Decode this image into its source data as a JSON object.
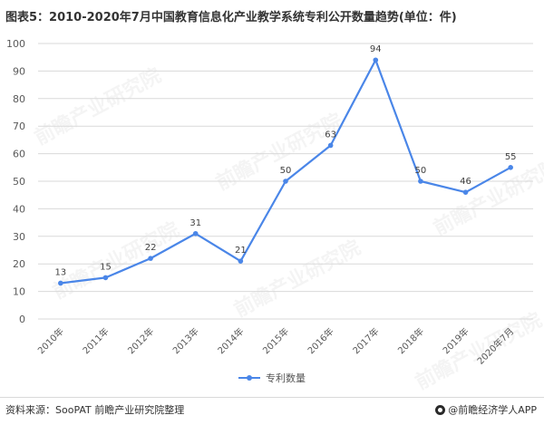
{
  "title": "图表5：2010-2020年7月中国教育信息化产业教学系统专利公开数量趋势(单位：件)",
  "source": "资料来源：SooPAT 前瞻产业研究院整理",
  "brand": "@前瞻经济学人APP",
  "watermark_text": "前瞻产业研究院",
  "colors": {
    "series": "#4a86e8",
    "grid": "#d9d9d9",
    "axis_text": "#595959",
    "label_text": "#404040"
  },
  "chart_data": {
    "type": "line",
    "title": "图表5：2010-2020年7月中国教育信息化产业教学系统专利公开数量趋势(单位：件)",
    "categories": [
      "2010年",
      "2011年",
      "2012年",
      "2013年",
      "2014年",
      "2015年",
      "2016年",
      "2017年",
      "2018年",
      "2019年",
      "2020年7月"
    ],
    "series": [
      {
        "name": "专利数量",
        "values": [
          13,
          15,
          22,
          31,
          21,
          50,
          63,
          94,
          50,
          46,
          55
        ]
      }
    ],
    "ylim": [
      0,
      100
    ],
    "yticks": [
      0,
      10,
      20,
      30,
      40,
      50,
      60,
      70,
      80,
      90,
      100
    ],
    "grid": true,
    "legend": "bottom-center",
    "data_labels": true
  }
}
